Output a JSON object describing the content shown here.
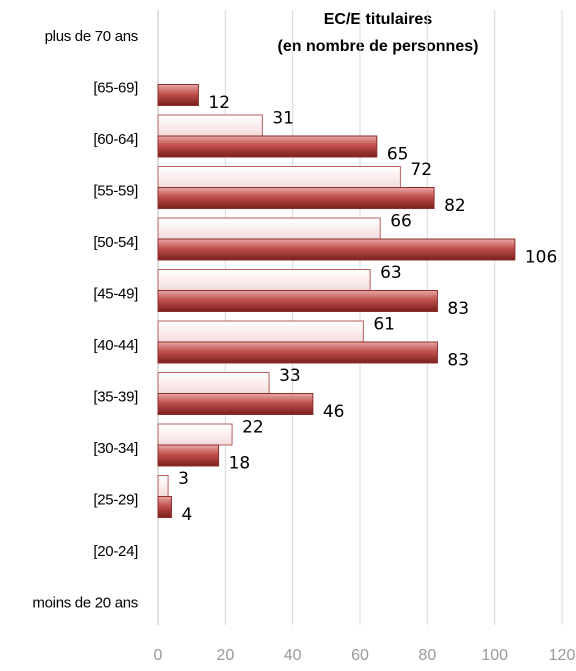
{
  "chart_data": {
    "type": "hbar",
    "title": "EC/E titulaires",
    "subtitle": "(en nombre de personnes)",
    "categories": [
      "plus de 70 ans",
      "[65-69]",
      "[60-64]",
      "[55-59]",
      "[50-54]",
      "[45-49]",
      "[40-44]",
      "[35-39]",
      "[30-34]",
      "[25-29]",
      "[20-24]",
      "moins de 20 ans"
    ],
    "series": [
      {
        "color": "#f2dcdb",
        "values": [
          null,
          null,
          31,
          72,
          66,
          63,
          61,
          33,
          22,
          3,
          null,
          null
        ]
      },
      {
        "color": "#c0504d",
        "values": [
          null,
          12,
          65,
          82,
          106,
          83,
          83,
          46,
          18,
          4,
          null,
          null
        ]
      }
    ],
    "xlim": [
      0,
      120
    ],
    "xticks": [
      0,
      20,
      40,
      60,
      80,
      100,
      120
    ],
    "grid": true
  }
}
